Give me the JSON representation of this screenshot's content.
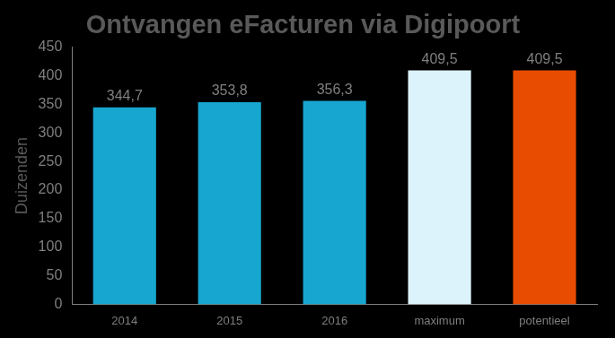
{
  "chart_data": {
    "type": "bar",
    "title": "Ontvangen eFacturen via Digipoort",
    "y_label": "Duizenden",
    "categories": [
      "2014",
      "2015",
      "2016",
      "maximum",
      "potentieel"
    ],
    "values": [
      344.7,
      353.8,
      356.3,
      409.5,
      409.5
    ],
    "value_labels": [
      "344,7",
      "353,8",
      "356,3",
      "409,5",
      "409,5"
    ],
    "colors": [
      "#17a6cf",
      "#17a6cf",
      "#17a6cf",
      "#ddf3fb",
      "#e84c00"
    ],
    "ylim": [
      0,
      450
    ],
    "yticks": [
      0,
      50,
      100,
      150,
      200,
      250,
      300,
      350,
      400,
      450
    ],
    "grid": false,
    "data_labels": true
  }
}
